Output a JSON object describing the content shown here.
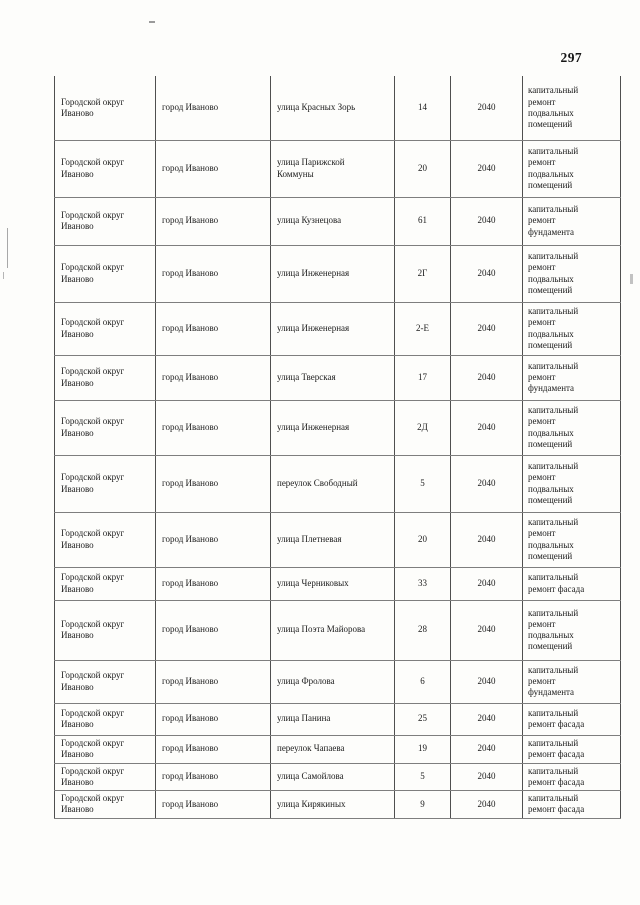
{
  "page": {
    "number": "297"
  },
  "table": {
    "rows": [
      {
        "district": "Городской округ\nИваново",
        "city": "город Иваново",
        "street": "улица Красных Зорь",
        "house": "14",
        "year": "2040",
        "work": "капитальный\nремонт\nподвальных\nпомещений"
      },
      {
        "district": "Городской округ\nИваново",
        "city": "город Иваново",
        "street": "улица Парижской\nКоммуны",
        "house": "20",
        "year": "2040",
        "work": "капитальный\nремонт\nподвальных\nпомещений"
      },
      {
        "district": "Городской округ\nИваново",
        "city": "город Иваново",
        "street": "улица Кузнецова",
        "house": "61",
        "year": "2040",
        "work": "капитальный\nремонт\nфундамента"
      },
      {
        "district": "Городской округ\nИваново",
        "city": "город Иваново",
        "street": "улица Инженерная",
        "house": "2Г",
        "year": "2040",
        "work": "капитальный\nремонт\nподвальных\nпомещений"
      },
      {
        "district": "Городской округ\nИваново",
        "city": "город Иваново",
        "street": "улица Инженерная",
        "house": "2-Е",
        "year": "2040",
        "work": "капитальный\nремонт\nподвальных\nпомещений"
      },
      {
        "district": "Городской округ\nИваново",
        "city": "город Иваново",
        "street": "улица Тверская",
        "house": "17",
        "year": "2040",
        "work": "капитальный\nремонт\nфундамента"
      },
      {
        "district": "Городской округ\nИваново",
        "city": "город Иваново",
        "street": "улица Инженерная",
        "house": "2Д",
        "year": "2040",
        "work": "капитальный\nремонт\nподвальных\nпомещений"
      },
      {
        "district": "Городской округ\nИваново",
        "city": "город Иваново",
        "street": "переулок Свободный",
        "house": "5",
        "year": "2040",
        "work": "капитальный\nремонт\nподвальных\nпомещений"
      },
      {
        "district": "Городской округ\nИваново",
        "city": "город Иваново",
        "street": "улица Плетневая",
        "house": "20",
        "year": "2040",
        "work": "капитальный\nремонт\nподвальных\nпомещений"
      },
      {
        "district": "Городской округ\nИваново",
        "city": "город Иваново",
        "street": "улица Черниковых",
        "house": "33",
        "year": "2040",
        "work": "капитальный\nремонт фасада"
      },
      {
        "district": "Городской округ\nИваново",
        "city": "город Иваново",
        "street": "улица Поэта Майорова",
        "house": "28",
        "year": "2040",
        "work": "капитальный\nремонт\nподвальных\nпомещений"
      },
      {
        "district": "Городской округ\nИваново",
        "city": "город Иваново",
        "street": "улица Фролова",
        "house": "6",
        "year": "2040",
        "work": "капитальный\nремонт\nфундамента"
      },
      {
        "district": "Городской округ\nИваново",
        "city": "город Иваново",
        "street": "улица Панина",
        "house": "25",
        "year": "2040",
        "work": "капитальный\nремонт фасада"
      },
      {
        "district": "Городской округ\nИваново",
        "city": "город Иваново",
        "street": "переулок Чапаева",
        "house": "19",
        "year": "2040",
        "work": "капитальный\nремонт фасада"
      },
      {
        "district": "Городской округ\nИваново",
        "city": "город Иваново",
        "street": "улица Самойлова",
        "house": "5",
        "year": "2040",
        "work": "капитальный\nремонт фасада"
      },
      {
        "district": "Городской округ\nИваново",
        "city": "город Иваново",
        "street": "улица Кирякиных",
        "house": "9",
        "year": "2040",
        "work": "капитальный\nремонт фасада"
      }
    ]
  }
}
